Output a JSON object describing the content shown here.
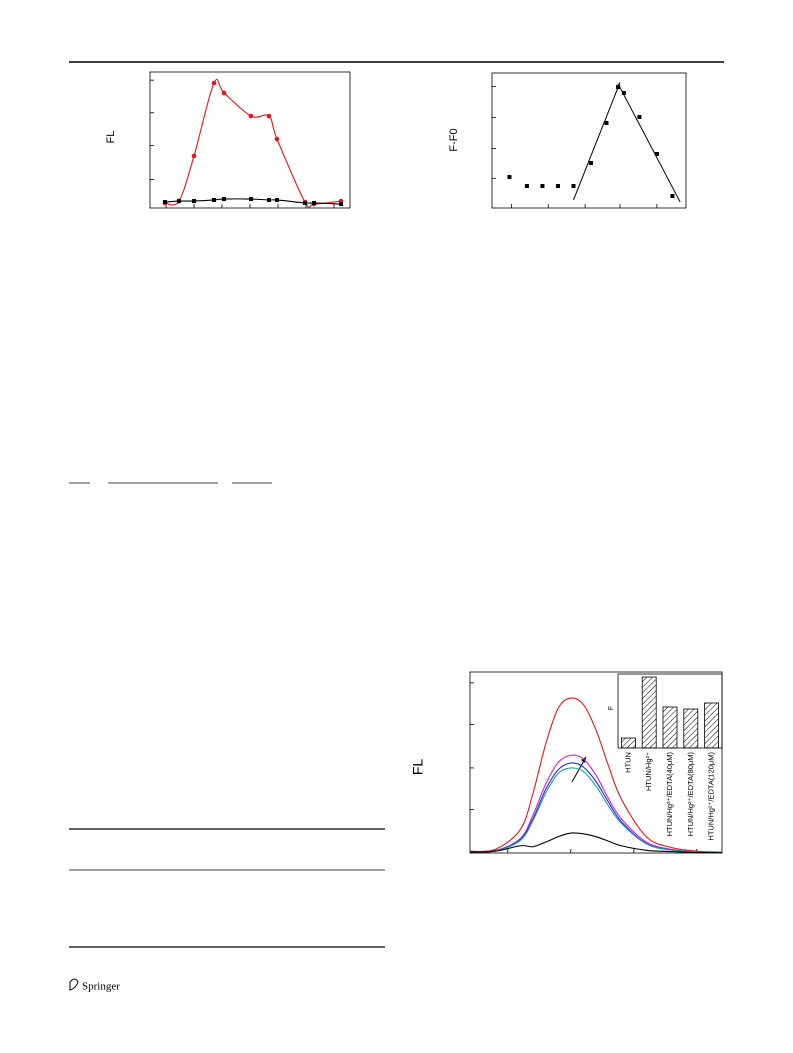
{
  "chart_data": [
    {
      "type": "line",
      "ylabel": "FL",
      "x": [
        1.5,
        2.9,
        4.4,
        6.4,
        7.4,
        10.1,
        11.9,
        12.7,
        15.5,
        16.4,
        19.1
      ],
      "xlim": [
        0,
        20
      ],
      "ylim": [
        0,
        100
      ],
      "xticks": [
        1.6,
        4.4,
        7.2,
        10,
        12.8,
        15.6,
        18.4
      ],
      "yticks": [
        21,
        46,
        70,
        94
      ],
      "series": [
        {
          "color": "#e8141b",
          "marker": "circle",
          "values": [
            3.7,
            5.1,
            38.2,
            91.9,
            84.6,
            67.6,
            67.6,
            50.7,
            4.4,
            2.9,
            5.1
          ]
        },
        {
          "color": "#000000",
          "marker": "square",
          "values": [
            4.4,
            5.1,
            5.1,
            5.9,
            6.6,
            6.6,
            5.9,
            5.9,
            3.7,
            3.7,
            2.9
          ]
        }
      ]
    },
    {
      "type": "scatter",
      "ylabel": "F-F0",
      "x": [
        0.09,
        0.18,
        0.26,
        0.34,
        0.42,
        0.51,
        0.59,
        0.65,
        0.68,
        0.76,
        0.85,
        0.93
      ],
      "xlim": [
        0,
        1
      ],
      "ylim": [
        0,
        100
      ],
      "xticks": [
        0.1,
        0.29,
        0.48,
        0.66,
        0.85
      ],
      "yticks": [
        22,
        44,
        67,
        90
      ],
      "series": [
        {
          "color": "#000000",
          "marker": "square",
          "values": [
            23,
            16.3,
            16.3,
            16.3,
            16.3,
            33.3,
            63,
            89.6,
            85.2,
            67.4,
            40,
            8.9
          ]
        }
      ],
      "fit_lines": [
        {
          "x": [
            0.42,
            0.66
          ],
          "values": [
            6,
            93
          ]
        },
        {
          "x": [
            0.65,
            0.97
          ],
          "values": [
            92,
            4.4
          ]
        }
      ]
    },
    {
      "type": "line",
      "ylabel": "FL",
      "x": [
        0,
        10,
        20,
        25,
        30,
        35,
        40,
        45,
        50,
        55,
        60,
        70,
        80,
        90,
        100
      ],
      "xlim": [
        0,
        100
      ],
      "ylim": [
        0,
        100
      ],
      "xticks": [
        15,
        40,
        65,
        90
      ],
      "yticks": [
        24,
        47,
        71,
        94
      ],
      "series": [
        {
          "color": "#e8141b",
          "values": [
            1,
            2,
            13,
            33,
            60,
            80,
            85.6,
            82,
            68,
            48,
            30,
            9,
            3,
            1,
            0.5
          ]
        },
        {
          "color": "#d21fd6",
          "values": [
            0.6,
            1.3,
            8,
            21,
            38,
            50,
            54,
            52,
            43,
            30,
            19,
            6,
            2,
            0.6,
            0.3
          ]
        },
        {
          "color": "#1c2fd0",
          "values": [
            0.6,
            1.2,
            7.5,
            19,
            35,
            46,
            49.7,
            47.5,
            39.5,
            28,
            17.4,
            5.2,
            1.7,
            0.6,
            0.3
          ]
        },
        {
          "color": "#1a9a9a",
          "values": [
            0.6,
            1.1,
            7,
            18,
            33,
            44,
            47,
            45,
            37,
            26,
            16.5,
            5,
            1.6,
            0.6,
            0.3
          ]
        },
        {
          "color": "#000000",
          "values": [
            0.5,
            1,
            4,
            3.5,
            6,
            9,
            11,
            10.6,
            9,
            6.5,
            4,
            1.5,
            0.8,
            0.3,
            0.2
          ]
        }
      ]
    },
    {
      "type": "bar",
      "ylabel": "F",
      "categories": [
        "HTUN",
        "HTUN/Hg²⁺",
        "HTUN/Hg²⁺/EDTA(40μM)",
        "HTUN/Hg²⁺/EDTA(80μM)",
        "HTUN/Hg²⁺/EDTA(120μM)"
      ],
      "values": [
        13.5,
        95.9,
        55.4,
        52.7,
        60.8
      ],
      "ylim": [
        0,
        100
      ]
    }
  ],
  "footer": {
    "publisher": "Springer"
  }
}
